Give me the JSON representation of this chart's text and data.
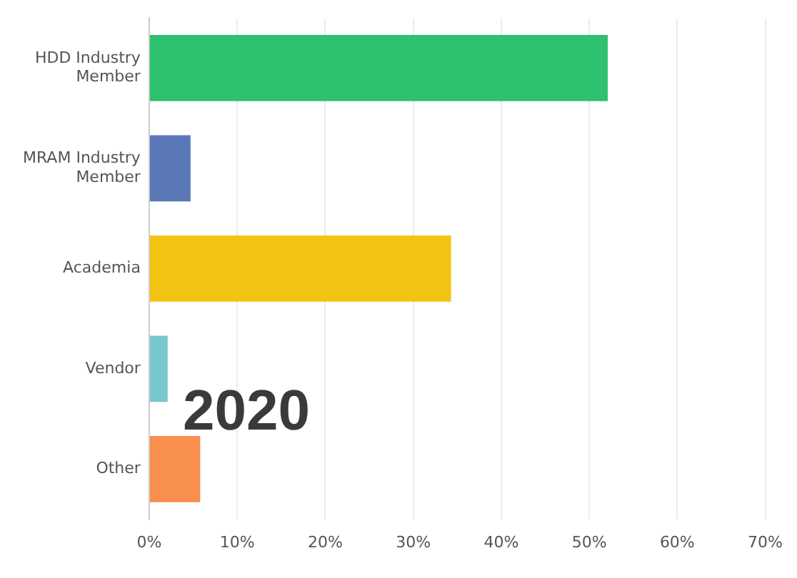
{
  "chart_data": {
    "type": "bar",
    "orientation": "horizontal",
    "categories": [
      "HDD Industry Member",
      "MRAM Industry Member",
      "Academia",
      "Vendor",
      "Other"
    ],
    "values": [
      52.1,
      4.7,
      34.3,
      2.1,
      5.8
    ],
    "colors": [
      "#2ec16f",
      "#5a78b8",
      "#f2c313",
      "#77c7cf",
      "#f98f4f"
    ],
    "xlim": [
      0,
      70
    ],
    "xticks": [
      {
        "value": 0,
        "label": "0%"
      },
      {
        "value": 10,
        "label": "10%"
      },
      {
        "value": 20,
        "label": "20%"
      },
      {
        "value": 30,
        "label": "30%"
      },
      {
        "value": 40,
        "label": "40%"
      },
      {
        "value": 50,
        "label": "50%"
      },
      {
        "value": 60,
        "label": "60%"
      },
      {
        "value": 70,
        "label": "70%"
      }
    ],
    "grid": "x",
    "legend": false,
    "annotations": [
      "2020"
    ]
  }
}
